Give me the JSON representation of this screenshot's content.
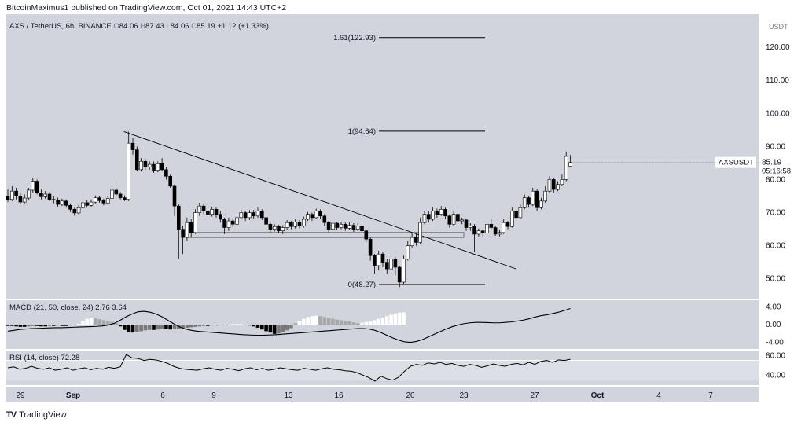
{
  "header": {
    "published": "BitcoinMaximus1 published on TradingView.com, Oct 01, 2021 14:43 UTC+2"
  },
  "legend": {
    "symbol": "AXS / TetherUS, 6h, BINANCE",
    "o_label": "O",
    "o_value": "84.06",
    "h_label": "H",
    "h_value": "87.43",
    "l_label": "L",
    "l_value": "84.06",
    "c_label": "C",
    "c_value": "85.19",
    "change": "+1.12 (+1.33%)"
  },
  "price_tag": {
    "ticker": "AXSUSDT",
    "price": "85.19",
    "countdown": "05:16:58"
  },
  "macd_legend": {
    "name": "MACD (21, 50, close, 24)",
    "v1": "2.76",
    "v2": "3.64"
  },
  "rsi_legend": {
    "name": "RSI (14, close)",
    "v": "72.28"
  },
  "footer": {
    "brand": "TradingView"
  },
  "colors": {
    "pane_bg": "#d1d4dc",
    "axis_bg": "#ffffff",
    "candle_up_fill": "#ffffff",
    "candle_down_fill": "#000000",
    "candle_outline": "#000000",
    "hist_pos_strong": "#ffffff",
    "hist_pos_weak": "#a8a8a8",
    "hist_neg_strong": "#000000",
    "hist_neg_weak": "#787878",
    "line": "#000000"
  },
  "chart_data": [
    {
      "type": "candlestick",
      "title": "AXS / TetherUS, 6h, BINANCE",
      "y_unit": "USDT",
      "ylim": [
        44,
        130
      ],
      "y_ticks": [
        "50.00",
        "60.00",
        "70.00",
        "80.00",
        "90.00",
        "100.00",
        "110.00",
        "120.00"
      ],
      "x_ticks": [
        "29",
        "Sep",
        "6",
        "9",
        "13",
        "16",
        "20",
        "23",
        "27",
        "Oct",
        "4",
        "7"
      ],
      "last_price": 85.19,
      "candles": [
        [
          75.0,
          74.0,
          77.0,
          73.2
        ],
        [
          74.0,
          76.5,
          78.0,
          73.5
        ],
        [
          76.5,
          75.0,
          77.5,
          74.0
        ],
        [
          75.0,
          73.2,
          76.0,
          72.5
        ],
        [
          73.2,
          74.4,
          75.5,
          72.8
        ],
        [
          74.4,
          76.8,
          77.5,
          74.0
        ],
        [
          76.8,
          79.5,
          80.5,
          76.0
        ],
        [
          79.5,
          76.0,
          80.0,
          75.5
        ],
        [
          76.0,
          74.8,
          77.0,
          74.0
        ],
        [
          74.8,
          75.6,
          76.5,
          74.2
        ],
        [
          75.6,
          74.0,
          76.2,
          73.5
        ],
        [
          74.0,
          73.8,
          75.0,
          72.8
        ],
        [
          73.8,
          72.5,
          74.5,
          71.8
        ],
        [
          72.5,
          73.5,
          74.2,
          72.0
        ],
        [
          73.5,
          72.2,
          74.0,
          71.5
        ],
        [
          72.2,
          71.0,
          72.8,
          70.2
        ],
        [
          71.0,
          69.9,
          71.5,
          69.0
        ],
        [
          69.9,
          71.5,
          72.3,
          69.5
        ],
        [
          71.5,
          73.0,
          73.5,
          71.0
        ],
        [
          73.0,
          72.2,
          73.8,
          71.5
        ],
        [
          72.2,
          73.2,
          74.0,
          71.8
        ],
        [
          73.2,
          74.5,
          75.2,
          72.8
        ],
        [
          74.5,
          73.6,
          75.0,
          73.0
        ],
        [
          73.6,
          72.9,
          74.2,
          72.2
        ],
        [
          72.9,
          74.3,
          75.0,
          72.5
        ],
        [
          74.3,
          76.8,
          77.5,
          74.0
        ],
        [
          76.8,
          75.6,
          77.5,
          75.0
        ],
        [
          75.6,
          74.5,
          76.2,
          74.0
        ],
        [
          74.5,
          74.0,
          75.2,
          73.5
        ],
        [
          74.0,
          91.0,
          94.5,
          73.5
        ],
        [
          91.0,
          89.0,
          92.5,
          87.5
        ],
        [
          89.0,
          83.0,
          90.0,
          82.5
        ],
        [
          83.0,
          85.5,
          86.5,
          82.5
        ],
        [
          85.5,
          83.8,
          86.2,
          83.0
        ],
        [
          83.8,
          84.6,
          85.5,
          83.0
        ],
        [
          84.6,
          82.8,
          85.5,
          82.0
        ],
        [
          82.8,
          84.8,
          85.5,
          82.2
        ],
        [
          84.8,
          83.0,
          86.5,
          82.5
        ],
        [
          83.0,
          81.0,
          83.8,
          80.0
        ],
        [
          81.0,
          78.0,
          81.5,
          77.5
        ],
        [
          78.0,
          72.0,
          78.5,
          69.0
        ],
        [
          72.0,
          65.0,
          72.5,
          56.0
        ],
        [
          65.0,
          62.5,
          66.0,
          57.5
        ],
        [
          62.5,
          67.0,
          68.5,
          61.5
        ],
        [
          67.0,
          64.0,
          68.0,
          62.5
        ],
        [
          64.0,
          70.0,
          71.0,
          63.5
        ],
        [
          70.0,
          72.0,
          73.0,
          69.0
        ],
        [
          72.0,
          70.5,
          72.8,
          69.5
        ],
        [
          70.5,
          69.5,
          71.5,
          68.5
        ],
        [
          69.5,
          71.0,
          71.8,
          68.8
        ],
        [
          71.0,
          69.5,
          71.5,
          68.5
        ],
        [
          69.5,
          68.0,
          70.5,
          67.0
        ],
        [
          68.0,
          65.5,
          68.5,
          63.5
        ],
        [
          65.5,
          67.5,
          68.5,
          64.5
        ],
        [
          67.5,
          66.5,
          68.2,
          65.5
        ],
        [
          66.5,
          68.5,
          69.5,
          65.8
        ],
        [
          68.5,
          70.0,
          71.0,
          68.0
        ],
        [
          70.0,
          68.5,
          70.5,
          67.5
        ],
        [
          68.5,
          70.0,
          70.8,
          67.8
        ],
        [
          70.0,
          69.0,
          70.8,
          68.2
        ],
        [
          69.0,
          70.5,
          71.5,
          68.5
        ],
        [
          70.5,
          68.5,
          71.0,
          67.8
        ],
        [
          68.5,
          66.5,
          69.0,
          63.5
        ],
        [
          66.5,
          65.0,
          67.0,
          64.0
        ],
        [
          65.0,
          65.8,
          66.5,
          64.3
        ],
        [
          65.8,
          64.5,
          66.3,
          63.8
        ],
        [
          64.5,
          65.5,
          66.2,
          63.5
        ],
        [
          65.5,
          67.0,
          67.8,
          64.8
        ],
        [
          67.0,
          65.8,
          67.5,
          65.0
        ],
        [
          65.8,
          67.2,
          68.0,
          65.2
        ],
        [
          67.2,
          66.0,
          67.8,
          65.3
        ],
        [
          66.0,
          68.0,
          68.8,
          65.5
        ],
        [
          68.0,
          69.5,
          70.2,
          67.5
        ],
        [
          69.5,
          68.5,
          70.0,
          67.5
        ],
        [
          68.5,
          70.5,
          71.2,
          68.0
        ],
        [
          70.5,
          69.0,
          71.0,
          68.2
        ],
        [
          69.0,
          67.0,
          69.5,
          66.0
        ],
        [
          67.0,
          65.0,
          67.5,
          64.0
        ],
        [
          65.0,
          66.8,
          67.5,
          64.5
        ],
        [
          66.8,
          65.5,
          67.2,
          64.8
        ],
        [
          65.5,
          66.5,
          67.2,
          65.0
        ],
        [
          66.5,
          65.3,
          67.0,
          64.5
        ],
        [
          65.3,
          66.2,
          67.0,
          64.8
        ],
        [
          66.2,
          65.0,
          66.8,
          64.2
        ],
        [
          65.0,
          66.0,
          66.8,
          64.5
        ],
        [
          66.0,
          64.5,
          66.5,
          63.8
        ],
        [
          64.5,
          62.0,
          65.0,
          61.0
        ],
        [
          62.0,
          57.0,
          62.5,
          55.5
        ],
        [
          57.0,
          54.0,
          57.5,
          51.5
        ],
        [
          54.0,
          57.5,
          58.5,
          52.5
        ],
        [
          57.5,
          55.0,
          58.0,
          53.5
        ],
        [
          55.0,
          53.0,
          56.0,
          51.5
        ],
        [
          53.0,
          56.0,
          57.0,
          52.5
        ],
        [
          56.0,
          53.5,
          56.5,
          51.0
        ],
        [
          53.5,
          49.0,
          54.0,
          47.5
        ],
        [
          49.0,
          56.0,
          57.0,
          48.5
        ],
        [
          56.0,
          60.0,
          61.5,
          55.5
        ],
        [
          60.0,
          62.5,
          64.0,
          59.5
        ],
        [
          62.5,
          61.0,
          63.5,
          60.0
        ],
        [
          61.0,
          67.0,
          68.5,
          60.5
        ],
        [
          67.0,
          69.5,
          70.5,
          66.5
        ],
        [
          69.5,
          68.0,
          70.5,
          67.0
        ],
        [
          68.0,
          70.5,
          71.5,
          67.5
        ],
        [
          70.5,
          69.5,
          71.2,
          68.5
        ],
        [
          69.5,
          71.0,
          72.0,
          69.0
        ],
        [
          71.0,
          69.0,
          71.5,
          68.0
        ],
        [
          69.0,
          66.5,
          69.5,
          65.5
        ],
        [
          66.5,
          69.5,
          70.5,
          66.0
        ],
        [
          69.5,
          67.5,
          70.0,
          66.5
        ],
        [
          67.5,
          67.8,
          68.5,
          66.5
        ],
        [
          67.8,
          65.5,
          68.2,
          64.5
        ],
        [
          65.5,
          66.0,
          66.8,
          64.5
        ],
        [
          66.0,
          63.5,
          66.5,
          58.0
        ],
        [
          63.5,
          64.5,
          65.2,
          62.8
        ],
        [
          64.5,
          63.8,
          65.0,
          62.8
        ],
        [
          63.8,
          66.5,
          67.2,
          63.2
        ],
        [
          66.5,
          65.5,
          68.0,
          64.8
        ],
        [
          65.5,
          63.5,
          66.0,
          63.0
        ],
        [
          63.5,
          64.0,
          64.8,
          62.8
        ],
        [
          64.0,
          67.0,
          68.0,
          63.5
        ],
        [
          67.0,
          65.8,
          67.5,
          65.0
        ],
        [
          65.8,
          70.5,
          71.5,
          65.5
        ],
        [
          70.5,
          68.5,
          71.0,
          68.0
        ],
        [
          68.5,
          71.5,
          72.5,
          68.0
        ],
        [
          71.5,
          74.5,
          75.5,
          71.0
        ],
        [
          74.5,
          72.5,
          75.0,
          71.5
        ],
        [
          72.5,
          76.5,
          77.5,
          72.0
        ],
        [
          76.5,
          71.5,
          77.0,
          70.5
        ],
        [
          71.5,
          73.5,
          74.5,
          71.0
        ],
        [
          73.5,
          76.5,
          78.0,
          73.0
        ],
        [
          76.5,
          80.0,
          81.0,
          76.0
        ],
        [
          80.0,
          77.0,
          80.5,
          76.0
        ],
        [
          77.0,
          78.5,
          79.5,
          76.5
        ],
        [
          78.5,
          80.0,
          81.5,
          78.0
        ],
        [
          80.0,
          87.0,
          88.5,
          79.5
        ],
        [
          84.06,
          85.19,
          87.43,
          84.06
        ]
      ],
      "horizontal_levels": [
        {
          "label": "1.61(122.93)",
          "price": 122.93
        },
        {
          "label": "1(94.64)",
          "price": 94.64
        },
        {
          "label": "0(48.27)",
          "price": 48.27
        }
      ],
      "trendline": [
        [
          94.5,
          53.0
        ]
      ],
      "support_zone": [
        62.5,
        64.0
      ]
    },
    {
      "type": "macd",
      "title": "MACD (21, 50, close, 24)",
      "ylim": [
        -5.5,
        5.5
      ],
      "y_ticks": [
        "4.00",
        "0.00",
        "-4.00"
      ],
      "last_values": [
        2.76,
        3.64
      ],
      "line": [
        -1.5,
        -1.3,
        -1.1,
        -1.0,
        -0.9,
        -0.85,
        -0.8,
        -0.75,
        -0.7,
        -0.7,
        -0.65,
        -0.6,
        -0.55,
        -0.5,
        -0.45,
        -0.4,
        -0.3,
        -0.1,
        0.3,
        1.0,
        1.8,
        2.4,
        2.9,
        3.0,
        2.8,
        2.4,
        1.8,
        1.0,
        0.2,
        -0.5,
        -1.0,
        -1.3,
        -1.5,
        -1.6,
        -1.7,
        -1.8,
        -1.9,
        -2.0,
        -2.1,
        -2.2,
        -2.3,
        -2.35,
        -2.4,
        -2.4,
        -2.35,
        -2.3,
        -2.2,
        -2.1,
        -2.0,
        -1.9,
        -1.8,
        -1.7,
        -1.6,
        -1.5,
        -1.4,
        -1.3,
        -1.2,
        -1.1,
        -1.0,
        -0.9,
        -0.9,
        -1.0,
        -1.3,
        -1.8,
        -2.4,
        -3.0,
        -3.5,
        -3.9,
        -4.0,
        -3.8,
        -3.4,
        -2.8,
        -2.2,
        -1.6,
        -1.0,
        -0.5,
        -0.1,
        0.2,
        0.4,
        0.5,
        0.5,
        0.45,
        0.4,
        0.4,
        0.5,
        0.6,
        0.8,
        1.0,
        1.3,
        1.7,
        2.0,
        2.2,
        2.5,
        2.8,
        3.2,
        3.64
      ],
      "histogram": [
        -0.3,
        -0.3,
        -0.4,
        -0.5,
        -0.5,
        -0.4,
        -0.3,
        -0.3,
        -0.4,
        -0.4,
        -0.3,
        -0.3,
        -0.2,
        -0.3,
        -0.3,
        -0.2,
        -0.1,
        0.2,
        0.8,
        1.3,
        1.5,
        1.4,
        1.2,
        1.0,
        0.8,
        0.6,
        0.3,
        -0.4,
        -1.2,
        -1.6,
        -1.8,
        -1.7,
        -1.5,
        -1.3,
        -1.2,
        -1.2,
        -1.1,
        -1.0,
        -1.0,
        -1.1,
        -1.0,
        -0.9,
        -0.8,
        -0.7,
        -0.6,
        -0.5,
        -0.4,
        -0.3,
        -0.3,
        -0.2,
        -0.2,
        -0.1,
        -0.1,
        -0.1,
        0.1,
        0.1,
        0.1,
        -0.1,
        -0.2,
        -0.4,
        -0.7,
        -1.1,
        -1.5,
        -1.8,
        -2.1,
        -2.0,
        -1.7,
        -1.3,
        -0.8,
        0.3,
        0.8,
        1.3,
        1.7,
        1.9,
        2.0,
        1.9,
        1.7,
        1.5,
        1.3,
        1.1,
        1.0,
        0.9,
        0.7,
        0.5,
        0.3,
        0.4,
        0.6,
        0.8,
        1.0,
        1.3,
        1.6,
        1.9,
        2.2,
        2.5,
        2.7,
        2.76
      ]
    },
    {
      "type": "line",
      "title": "RSI (14, close)",
      "ylim": [
        20,
        90
      ],
      "y_ticks": [
        "80.00",
        "40.00"
      ],
      "last_value": 72.28,
      "values": [
        55,
        57,
        52,
        54,
        58,
        54,
        52,
        55,
        50,
        52,
        55,
        50,
        53,
        55,
        51,
        54,
        52,
        56,
        54,
        57,
        82,
        75,
        74,
        70,
        72,
        71,
        68,
        64,
        58,
        54,
        52,
        51,
        50,
        53,
        55,
        52,
        50,
        54,
        52,
        49,
        53,
        55,
        51,
        54,
        50,
        52,
        55,
        53,
        51,
        50,
        54,
        52,
        50,
        53,
        55,
        52,
        51,
        49,
        48,
        45,
        40,
        35,
        28,
        38,
        33,
        30,
        36,
        48,
        58,
        62,
        60,
        65,
        63,
        66,
        62,
        64,
        60,
        58,
        62,
        60,
        56,
        59,
        63,
        60,
        58,
        62,
        64,
        61,
        66,
        62,
        68,
        70,
        66,
        71,
        70,
        72.28
      ]
    }
  ]
}
